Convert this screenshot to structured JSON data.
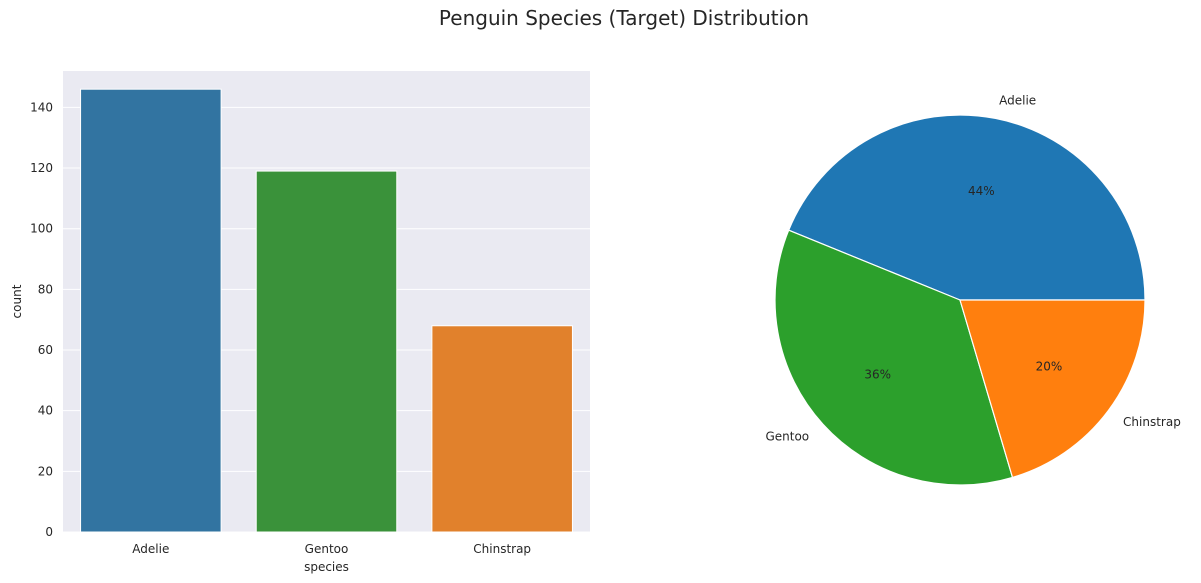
{
  "figure": {
    "title": "Penguin Species (Target) Distribution"
  },
  "chart_data": [
    {
      "type": "bar",
      "categories": [
        "Adelie",
        "Gentoo",
        "Chinstrap"
      ],
      "values": [
        146,
        119,
        68
      ],
      "colors": [
        "#3274a1",
        "#3a923a",
        "#e1812c"
      ],
      "xlabel": "species",
      "ylabel": "count",
      "ylim": [
        0,
        152
      ],
      "yticks": [
        0,
        20,
        40,
        60,
        80,
        100,
        120,
        140
      ],
      "grid": true,
      "background": "#eaeaf2"
    },
    {
      "type": "pie",
      "labels": [
        "Adelie",
        "Gentoo",
        "Chinstrap"
      ],
      "percent_labels": [
        "44%",
        "36%",
        "20%"
      ],
      "values": [
        146,
        119,
        68
      ],
      "colors": [
        "#1f77b4",
        "#2ca02c",
        "#ff7f0e"
      ]
    }
  ]
}
